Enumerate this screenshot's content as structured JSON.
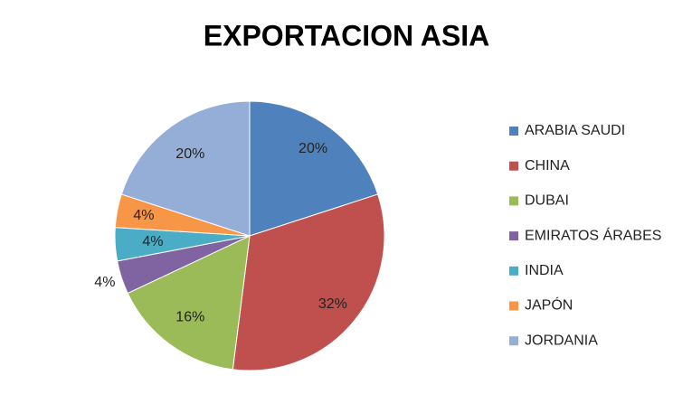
{
  "chart_data": {
    "type": "pie",
    "title": "EXPORTACION ASIA",
    "categories": [
      "ARABIA SAUDI",
      "CHINA",
      "DUBAI",
      "EMIRATOS ÁRABES",
      "INDIA",
      "JAPÓN",
      "JORDANIA"
    ],
    "values": [
      20,
      32,
      16,
      4,
      4,
      4,
      20
    ],
    "value_labels": [
      "20%",
      "32%",
      "16%",
      "4%",
      "4%",
      "4%",
      "20%"
    ],
    "colors": [
      "#4F81BD",
      "#C0504D",
      "#9BBB59",
      "#8064A2",
      "#4BACC6",
      "#F79646",
      "#95AED8"
    ],
    "legend": "right"
  }
}
